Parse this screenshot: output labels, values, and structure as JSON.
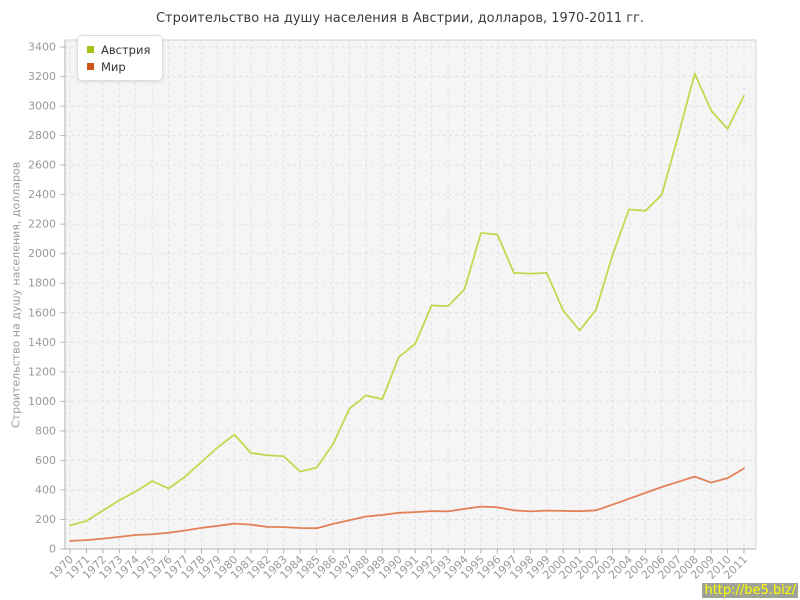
{
  "watermark": {
    "text": "http://be5.biz/"
  },
  "colors": {
    "page_background": "#ffffff",
    "plot_background": "#f5f5f5",
    "grid": "#e1e1e1",
    "border": "#d4d4d4",
    "axis": "#b3b3b3",
    "tick_text": "#9a9a9a",
    "title_text": "#3c3c3c",
    "watermark_bg": "#9fa396",
    "watermark_text": "#ffff00"
  },
  "chart_data": {
    "type": "line",
    "title": "Строительство на душу населения в Австрии, долларов, 1970-2011 гг.",
    "ylabel": "Строительство на душу населения, долларов",
    "xlabel": "",
    "ylim": [
      0,
      3400
    ],
    "ytick_step": 200,
    "grid": true,
    "legend_position": "top-left",
    "categories": [
      1970,
      1971,
      1972,
      1973,
      1974,
      1975,
      1976,
      1977,
      1978,
      1979,
      1980,
      1981,
      1982,
      1983,
      1984,
      1985,
      1986,
      1987,
      1988,
      1989,
      1990,
      1991,
      1992,
      1993,
      1994,
      1995,
      1996,
      1997,
      1998,
      1999,
      2000,
      2001,
      2002,
      2003,
      2004,
      2005,
      2006,
      2007,
      2008,
      2009,
      2010,
      2011
    ],
    "series": [
      {
        "name": "Австрия",
        "color": "#a3c213",
        "line_color": "#bfd646",
        "values": [
          160,
          190,
          260,
          330,
          390,
          460,
          410,
          490,
          590,
          690,
          775,
          650,
          635,
          628,
          525,
          550,
          710,
          950,
          1040,
          1015,
          1300,
          1390,
          1650,
          1645,
          1760,
          2140,
          2130,
          1870,
          1865,
          1870,
          1615,
          1480,
          1620,
          1990,
          2300,
          2290,
          2400,
          2800,
          3220,
          2970,
          2845,
          3070
        ]
      },
      {
        "name": "Мир",
        "color": "#d0551d",
        "line_color": "#e2794e",
        "values": [
          55,
          60,
          70,
          82,
          95,
          100,
          110,
          125,
          143,
          157,
          172,
          165,
          150,
          148,
          142,
          140,
          170,
          195,
          220,
          230,
          245,
          250,
          257,
          255,
          272,
          287,
          283,
          262,
          255,
          260,
          258,
          256,
          262,
          300,
          340,
          380,
          420,
          455,
          490,
          450,
          480,
          545
        ]
      }
    ]
  }
}
